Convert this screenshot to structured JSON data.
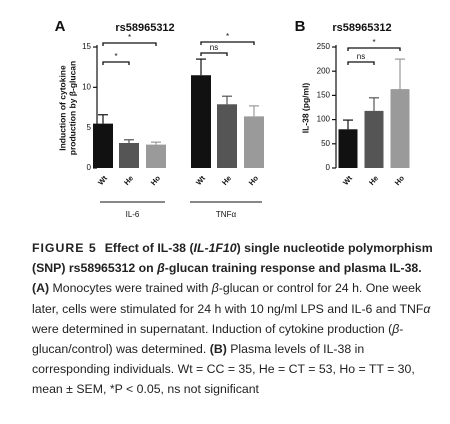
{
  "chart_data": [
    {
      "type": "bar",
      "panel_label": "A",
      "title": "rs58965312",
      "y_label": [
        "Induction of cytokine",
        "production by β-glucan"
      ],
      "ylim": [
        0,
        15
      ],
      "yticks": [
        0,
        5,
        10,
        15
      ],
      "colors": [
        "#111111",
        "#555555",
        "#9a9a9a"
      ],
      "groups": [
        {
          "name": "IL-6",
          "categories": [
            "Wt",
            "He",
            "Ho"
          ],
          "values": [
            5.5,
            3.1,
            2.9
          ],
          "errors": [
            1.1,
            0.4,
            0.3
          ],
          "annotations": [
            "*",
            "*"
          ]
        },
        {
          "name": "TNFα",
          "categories": [
            "Wt",
            "He",
            "Ho"
          ],
          "values": [
            11.5,
            7.9,
            6.4
          ],
          "errors": [
            2.0,
            1.0,
            1.3
          ],
          "annotations": [
            "*",
            "ns"
          ]
        }
      ]
    },
    {
      "type": "bar",
      "panel_label": "B",
      "title": "rs58965312",
      "y_label": [
        "IL-38 (pg/ml)"
      ],
      "ylim": [
        0,
        250
      ],
      "yticks": [
        0,
        50,
        100,
        150,
        200,
        250
      ],
      "colors": [
        "#111111",
        "#555555",
        "#9a9a9a"
      ],
      "categories": [
        "Wt",
        "He",
        "Ho"
      ],
      "values": [
        80,
        118,
        163
      ],
      "errors": [
        19,
        27,
        62
      ],
      "annotations": [
        "*",
        "ns"
      ]
    }
  ],
  "caption": {
    "label": "FIGURE 5",
    "runs": [
      {
        "text": "Effect of IL-38 (",
        "style": "bold"
      },
      {
        "text": "IL-1F10",
        "style": "bolditalic"
      },
      {
        "text": ") single nucleotide polymorphism (SNP) rs58965312 on ",
        "style": "bold"
      },
      {
        "text": "β",
        "style": "bolditalic"
      },
      {
        "text": "-glucan training response and plasma IL-38. ",
        "style": "bold"
      },
      {
        "text": "(A)",
        "style": "bold"
      },
      {
        "text": " Monocytes were trained with ",
        "style": "plain"
      },
      {
        "text": "β",
        "style": "italic"
      },
      {
        "text": "-glucan or control for 24 h. One week later, cells were stimulated for 24 h with 10 ng/ml LPS and IL-6 and TNF",
        "style": "plain"
      },
      {
        "text": "α",
        "style": "italic"
      },
      {
        "text": " were determined in supernatant. Induction of cytokine production (",
        "style": "plain"
      },
      {
        "text": "β",
        "style": "italic"
      },
      {
        "text": "-glucan/control) was determined. ",
        "style": "plain"
      },
      {
        "text": "(B)",
        "style": "bold"
      },
      {
        "text": " Plasma levels of IL-38 in corresponding individuals. Wt = CC = 35, He = CT = 53, Ho = TT = 30, mean ± SEM, *P < 0.05, ns not significant",
        "style": "plain"
      }
    ]
  }
}
